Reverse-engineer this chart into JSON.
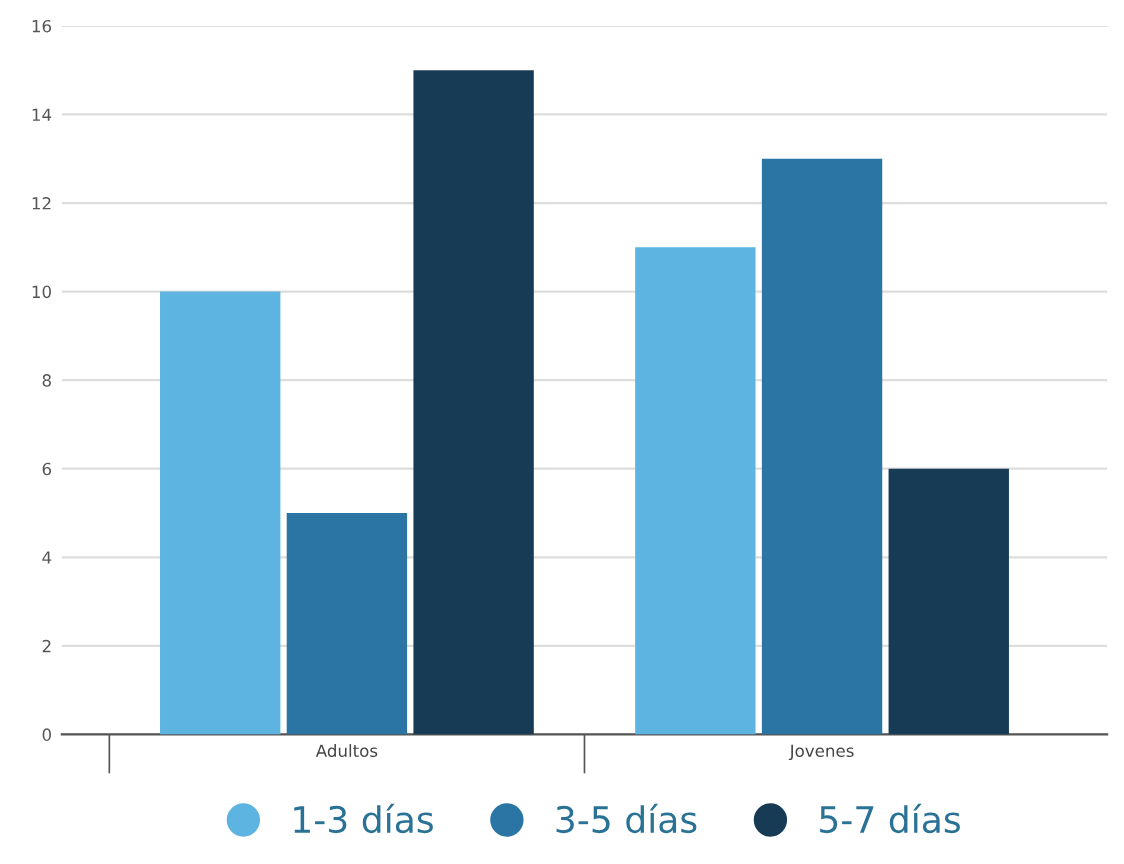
{
  "chart_data": {
    "type": "bar",
    "categories": [
      "Adultos",
      "Jovenes"
    ],
    "series": [
      {
        "name": "1-3 días",
        "color": "#5db4e0",
        "values": [
          10,
          11
        ]
      },
      {
        "name": "3-5 días",
        "color": "#2a75a3",
        "values": [
          5,
          13
        ]
      },
      {
        "name": "5-7 días",
        "color": "#173a55",
        "values": [
          15,
          6
        ]
      }
    ],
    "ylim": [
      0,
      16
    ],
    "yticks": [
      0,
      2,
      4,
      6,
      8,
      10,
      12,
      14,
      16
    ],
    "grid": "y",
    "legend": "bottom",
    "marker": "circle"
  }
}
